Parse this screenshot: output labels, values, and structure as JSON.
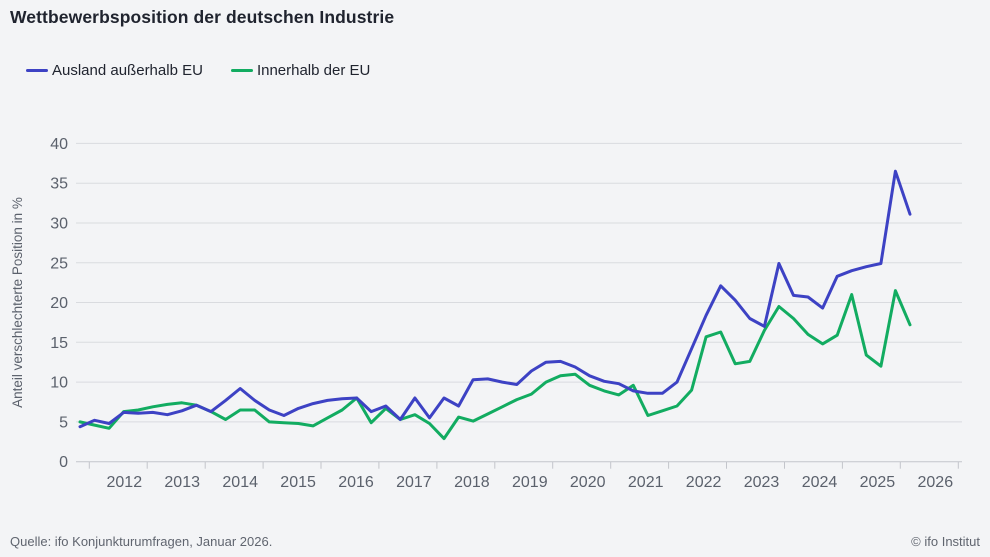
{
  "title": "Wettbewerbsposition der deutschen Industrie",
  "footer": {
    "source": "Quelle: ifo Konjunkturumfragen, Januar 2026.",
    "copyright": "© ifo Institut"
  },
  "colors": {
    "background": "#f3f4f6",
    "grid": "#d9dbdf",
    "axis": "#c3c5cb",
    "tick_text": "#5b616c",
    "title_text": "#20242f"
  },
  "chart_data": {
    "type": "line",
    "title": "Wettbewerbsposition der deutschen Industrie",
    "xlabel": "",
    "ylabel": "Anteil verschlechterte Position in %",
    "ylim": [
      0,
      40
    ],
    "yticks": [
      0,
      5,
      10,
      15,
      20,
      25,
      30,
      35,
      40
    ],
    "year_labels": [
      "2012",
      "2013",
      "2014",
      "2015",
      "2016",
      "2017",
      "2018",
      "2019",
      "2020",
      "2021",
      "2022",
      "2023",
      "2024",
      "2025",
      "2026"
    ],
    "grid": "horizontal",
    "legend_position": "top-left",
    "x": [
      "2011Q4",
      "2012Q1",
      "2012Q2",
      "2012Q3",
      "2012Q4",
      "2013Q1",
      "2013Q2",
      "2013Q3",
      "2013Q4",
      "2014Q1",
      "2014Q2",
      "2014Q3",
      "2014Q4",
      "2015Q1",
      "2015Q2",
      "2015Q3",
      "2015Q4",
      "2016Q1",
      "2016Q2",
      "2016Q3",
      "2016Q4",
      "2017Q1",
      "2017Q2",
      "2017Q3",
      "2017Q4",
      "2018Q1",
      "2018Q2",
      "2018Q3",
      "2018Q4",
      "2019Q1",
      "2019Q2",
      "2019Q3",
      "2019Q4",
      "2020Q1",
      "2020Q2",
      "2020Q3",
      "2020Q4",
      "2021Q1",
      "2021Q2",
      "2021Q3",
      "2021Q4",
      "2022Q1",
      "2022Q2",
      "2022Q3",
      "2022Q4",
      "2023Q1",
      "2023Q2",
      "2023Q3",
      "2023Q4",
      "2024Q1",
      "2024Q2",
      "2024Q3",
      "2024Q4",
      "2025Q1",
      "2025Q2",
      "2025Q3",
      "2025Q4",
      "2026Q1"
    ],
    "series": [
      {
        "name": "Ausland außerhalb EU",
        "color": "#3d42c4",
        "values": [
          4.4,
          5.2,
          4.8,
          6.2,
          6.1,
          6.2,
          5.9,
          6.4,
          7.1,
          6.3,
          7.7,
          9.2,
          7.7,
          6.5,
          5.8,
          6.7,
          7.3,
          7.7,
          7.9,
          8.0,
          6.3,
          7.0,
          5.3,
          8.0,
          5.5,
          8.0,
          7.0,
          10.3,
          10.4,
          10.0,
          9.7,
          11.4,
          12.5,
          12.6,
          11.9,
          10.8,
          10.1,
          9.8,
          8.9,
          8.6,
          8.6,
          10.0,
          14.2,
          18.4,
          22.1,
          20.3,
          18.0,
          17.0,
          24.9,
          20.9,
          20.7,
          19.3,
          23.3,
          24.0,
          24.5,
          24.9,
          36.5,
          31.1
        ]
      },
      {
        "name": "Innerhalb der EU",
        "color": "#12ac61",
        "values": [
          5.0,
          4.6,
          4.2,
          6.3,
          6.5,
          6.9,
          7.2,
          7.4,
          7.1,
          6.3,
          5.3,
          6.5,
          6.5,
          5.0,
          4.9,
          4.8,
          4.5,
          5.5,
          6.5,
          8.0,
          4.9,
          6.7,
          5.3,
          5.9,
          4.8,
          2.9,
          5.6,
          5.1,
          6.0,
          6.9,
          7.8,
          8.5,
          10.0,
          10.8,
          11.0,
          9.6,
          8.9,
          8.4,
          9.6,
          5.8,
          6.4,
          7.0,
          9.0,
          15.7,
          16.3,
          12.3,
          12.6,
          16.5,
          19.5,
          18.0,
          16.0,
          14.8,
          15.9,
          21.0,
          13.4,
          12.0,
          21.5,
          17.2
        ]
      }
    ]
  }
}
